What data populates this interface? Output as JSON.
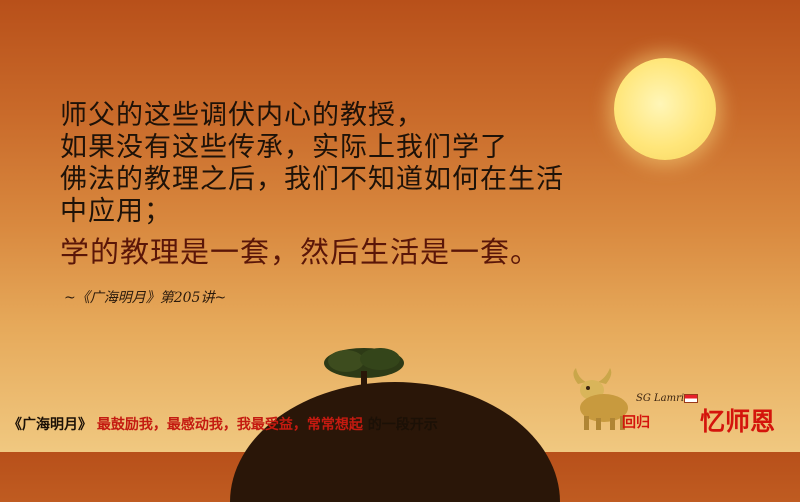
{
  "quote": {
    "lines": [
      "师父的这些调伏内心的教授，",
      "如果没有这些传承，实际上我们学了",
      "佛法的教理之后，我们不知道如何在生活",
      "中应用；"
    ],
    "emphasis": "学的教理是一套，然后生活是一套。",
    "source": "~《广海明月》第205讲~"
  },
  "caption": {
    "title": "《广海明月》",
    "highlight": "最鼓励我，最感动我，我最受益，常常想起",
    "tail": "的一段开示"
  },
  "logo": {
    "signature": "SG Lamrin",
    "small_text": "回归",
    "big_text": "忆师恩"
  },
  "icons": [
    "sun-icon",
    "tree-icon",
    "ox-icon",
    "singapore-flag-icon"
  ]
}
